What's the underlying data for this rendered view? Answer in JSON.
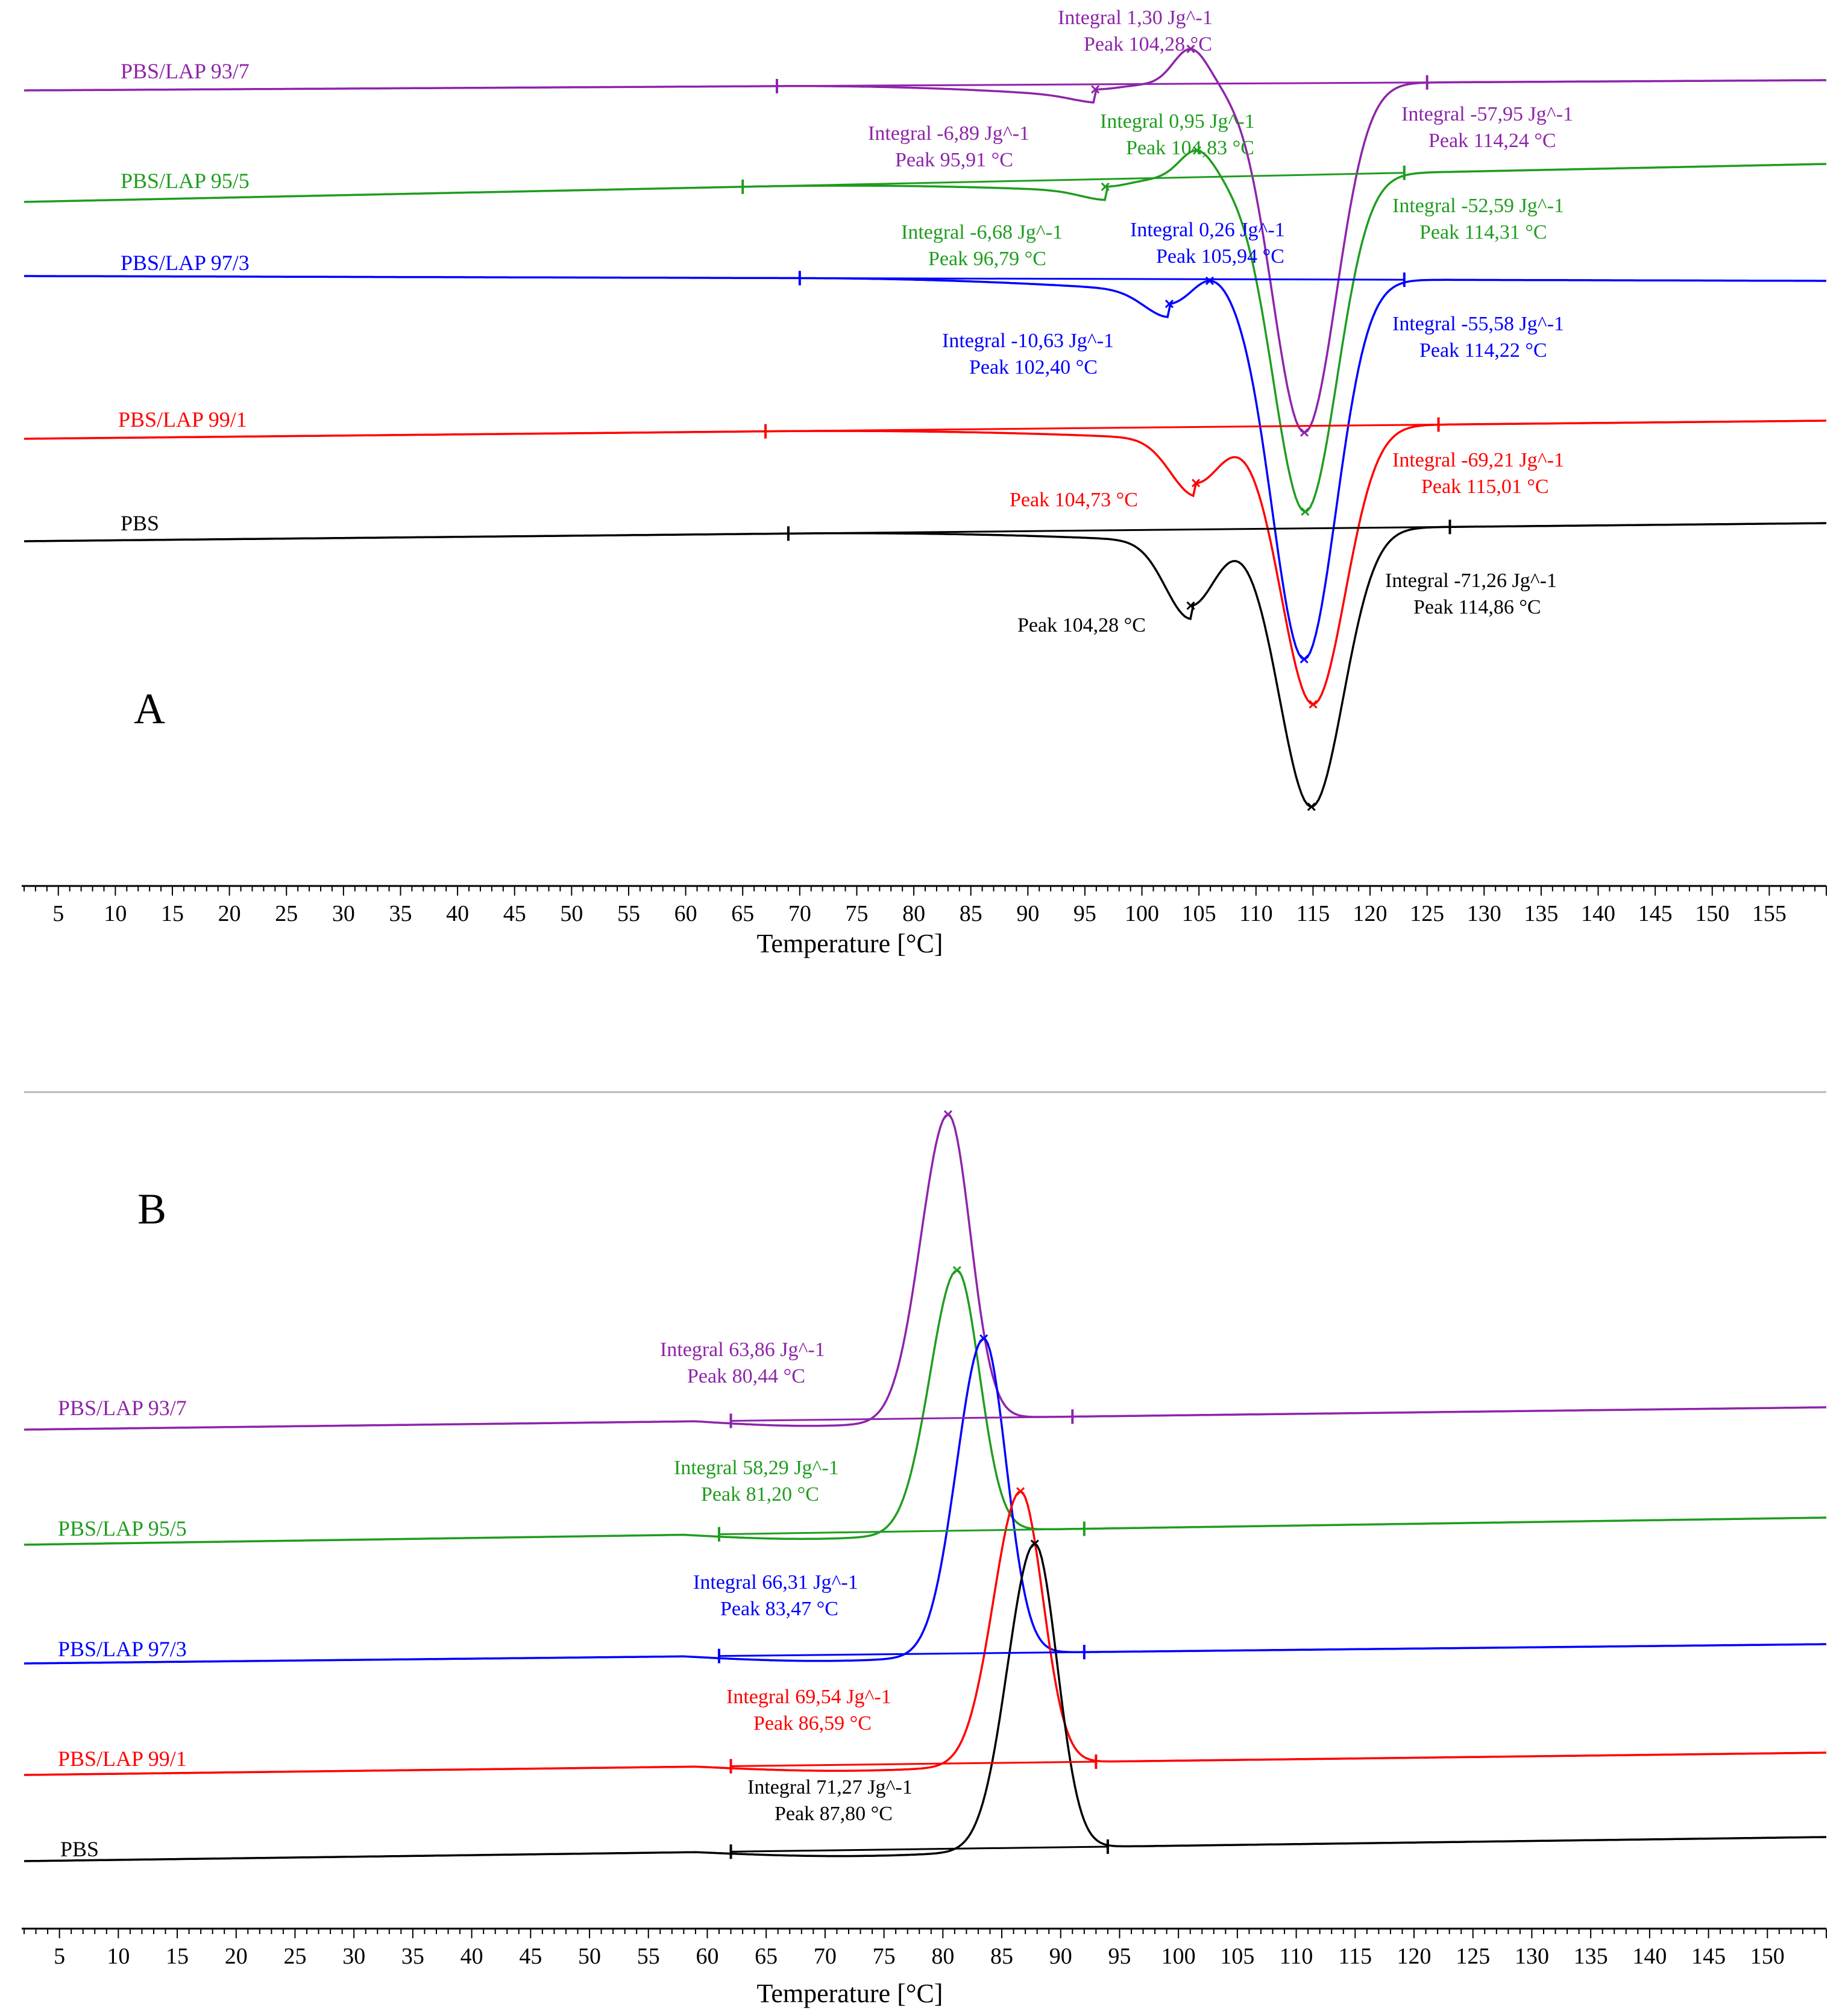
{
  "colors": {
    "PBS": "#000000",
    "PBS/LAP 99/1": "#ff0000",
    "PBS/LAP 97/3": "#0000ff",
    "PBS/LAP 95/5": "#1f9d1f",
    "PBS/LAP 93/7": "#8e24aa"
  },
  "chart_data": [
    {
      "type": "line",
      "panel": "A",
      "title": "A",
      "xlabel": "Temperature [°C]",
      "ylabel": "",
      "xlim": [
        2,
        160
      ],
      "x_ticks": [
        5,
        10,
        15,
        20,
        25,
        30,
        35,
        40,
        45,
        50,
        55,
        60,
        65,
        70,
        75,
        80,
        85,
        90,
        95,
        100,
        105,
        110,
        115,
        120,
        125,
        130,
        135,
        140,
        145,
        150,
        155
      ],
      "grid": false,
      "series": [
        {
          "name": "PBS/LAP 93/7",
          "baseline_start": 68,
          "baseline_end": 125,
          "peaks": [
            {
              "type": "endo",
              "x": 95.91,
              "depth": 0.2
            },
            {
              "type": "exo",
              "x": 104.28,
              "depth": 1.4
            },
            {
              "type": "endo",
              "x": 114.24,
              "depth": 13.8
            }
          ],
          "annotations": [
            {
              "integral": "Integral 1,30 Jg^-1",
              "peak": "Peak 104,28 °C"
            },
            {
              "integral": "Integral -6,89 Jg^-1",
              "peak": "Peak 95,91 °C"
            },
            {
              "integral": "Integral -57,95 Jg^-1",
              "peak": "Peak 114,24 °C"
            }
          ]
        },
        {
          "name": "PBS/LAP 95/5",
          "baseline_start": 65,
          "baseline_end": 123,
          "peaks": [
            {
              "type": "endo",
              "x": 96.79,
              "depth": 0.3
            },
            {
              "type": "exo",
              "x": 104.83,
              "depth": 1.1
            },
            {
              "type": "endo",
              "x": 114.31,
              "depth": 13.3
            }
          ],
          "annotations": [
            {
              "integral": "Integral 0,95 Jg^-1",
              "peak": "Peak 104,83 °C"
            },
            {
              "integral": "Integral -6,68 Jg^-1",
              "peak": "Peak 96,79 °C"
            },
            {
              "integral": "Integral -52,59 Jg^-1",
              "peak": "Peak 114,31 °C"
            }
          ]
        },
        {
          "name": "PBS/LAP 97/3",
          "baseline_start": 70,
          "baseline_end": 123,
          "peaks": [
            {
              "type": "endo",
              "x": 102.4,
              "depth": 1.0
            },
            {
              "type": "exo",
              "x": 105.94,
              "depth": 0.4
            },
            {
              "type": "endo",
              "x": 114.22,
              "depth": 15.0
            }
          ],
          "annotations": [
            {
              "integral": "Integral 0,26 Jg^-1",
              "peak": "Peak 105,94 °C"
            },
            {
              "integral": "Integral -10,63 Jg^-1",
              "peak": "Peak 102,40 °C"
            },
            {
              "integral": "Integral -55,58 Jg^-1",
              "peak": "Peak 114,22 °C"
            }
          ]
        },
        {
          "name": "PBS/LAP 99/1",
          "baseline_start": 67,
          "baseline_end": 126,
          "peaks": [
            {
              "type": "endo",
              "x": 104.73,
              "depth": 2.2
            },
            {
              "type": "endo",
              "x": 115.01,
              "depth": 11.0
            }
          ],
          "annotations": [
            {
              "integral": "",
              "peak": "Peak 104,73 °C"
            },
            {
              "integral": "Integral -69,21 Jg^-1",
              "peak": "Peak 115,01 °C"
            }
          ]
        },
        {
          "name": "PBS",
          "baseline_start": 69,
          "baseline_end": 127,
          "peaks": [
            {
              "type": "endo",
              "x": 104.28,
              "depth": 3.0
            },
            {
              "type": "endo",
              "x": 114.86,
              "depth": 11.0
            }
          ],
          "annotations": [
            {
              "integral": "",
              "peak": "Peak 104,28 °C"
            },
            {
              "integral": "Integral -71,26 Jg^-1",
              "peak": "Peak 114,86 °C"
            }
          ]
        }
      ]
    },
    {
      "type": "line",
      "panel": "B",
      "title": "B",
      "xlabel": "Temperature [°C]",
      "ylabel": "",
      "xlim": [
        2,
        155
      ],
      "x_ticks": [
        5,
        10,
        15,
        20,
        25,
        30,
        35,
        40,
        45,
        50,
        55,
        60,
        65,
        70,
        75,
        80,
        85,
        90,
        95,
        100,
        105,
        110,
        115,
        120,
        125,
        130,
        135,
        140,
        145,
        150
      ],
      "grid": false,
      "series": [
        {
          "name": "PBS/LAP 93/7",
          "baseline_start": 62,
          "baseline_end": 91,
          "peaks": [
            {
              "type": "exo",
              "x": 80.44,
              "height": 14.0
            }
          ],
          "annotations": [
            {
              "integral": "Integral 63,86 Jg^-1",
              "peak": "Peak 80,44 °C"
            }
          ]
        },
        {
          "name": "PBS/LAP 95/5",
          "baseline_start": 61,
          "baseline_end": 92,
          "peaks": [
            {
              "type": "exo",
              "x": 81.2,
              "height": 12.0
            }
          ],
          "annotations": [
            {
              "integral": "Integral 58,29 Jg^-1",
              "peak": "Peak 81,20 °C"
            }
          ]
        },
        {
          "name": "PBS/LAP 97/3",
          "baseline_start": 61,
          "baseline_end": 92,
          "peaks": [
            {
              "type": "exo",
              "x": 83.47,
              "height": 14.5
            }
          ],
          "annotations": [
            {
              "integral": "Integral 66,31 Jg^-1",
              "peak": "Peak 83,47 °C"
            }
          ]
        },
        {
          "name": "PBS/LAP 99/1",
          "baseline_start": 62,
          "baseline_end": 93,
          "peaks": [
            {
              "type": "exo",
              "x": 86.59,
              "height": 12.5
            }
          ],
          "annotations": [
            {
              "integral": "Integral 69,54 Jg^-1",
              "peak": "Peak 86,59 °C"
            }
          ]
        },
        {
          "name": "PBS",
          "baseline_start": 62,
          "baseline_end": 94,
          "peaks": [
            {
              "type": "exo",
              "x": 87.8,
              "height": 14.0
            }
          ],
          "annotations": [
            {
              "integral": "Integral 71,27 Jg^-1",
              "peak": "Peak 87,80 °C"
            }
          ]
        }
      ]
    }
  ]
}
